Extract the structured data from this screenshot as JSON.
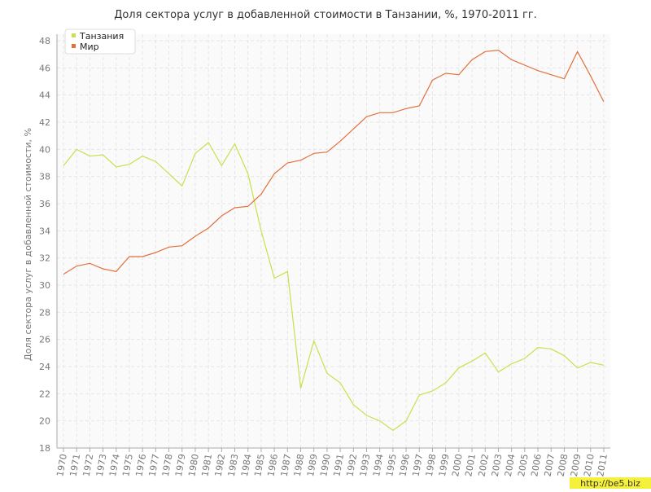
{
  "chart_data": {
    "type": "line",
    "title": "Доля сектора услуг в добавленной стоимости в Танзании, %, 1970-2011 гг.",
    "y_label": "Доля сектора услуг в добавленной стоимости, %",
    "watermark": "http://be5.biz",
    "x": [
      1970,
      1971,
      1972,
      1973,
      1974,
      1975,
      1976,
      1977,
      1978,
      1979,
      1980,
      1981,
      1982,
      1983,
      1984,
      1985,
      1986,
      1987,
      1988,
      1989,
      1990,
      1991,
      1992,
      1993,
      1994,
      1995,
      1996,
      1997,
      1998,
      1999,
      2000,
      2001,
      2002,
      2003,
      2004,
      2005,
      2006,
      2007,
      2008,
      2009,
      2010,
      2011
    ],
    "xlim": [
      1970,
      2011
    ],
    "ylim": [
      18,
      48
    ],
    "yticks": [
      18,
      20,
      22,
      24,
      26,
      28,
      30,
      32,
      34,
      36,
      38,
      40,
      42,
      44,
      46,
      48
    ],
    "grid": true,
    "legend": "top-left",
    "series": [
      {
        "name": "Танзания",
        "color": "#c8e04c",
        "values": [
          38.8,
          40.0,
          39.5,
          39.6,
          38.7,
          38.9,
          39.5,
          39.1,
          38.2,
          37.3,
          39.7,
          40.5,
          38.8,
          40.4,
          38.2,
          34.0,
          30.5,
          31.0,
          22.4,
          25.9,
          23.5,
          22.8,
          21.2,
          20.4,
          20.0,
          19.3,
          20.0,
          21.9,
          22.2,
          22.8,
          23.9,
          24.4,
          25.0,
          23.6,
          24.2,
          24.6,
          25.4,
          25.3,
          24.8,
          23.9,
          24.3,
          24.1
        ]
      },
      {
        "name": "Мир",
        "color": "#e2703c",
        "values": [
          30.8,
          31.4,
          31.6,
          31.2,
          31.0,
          32.1,
          32.1,
          32.4,
          32.8,
          32.9,
          33.6,
          34.2,
          35.1,
          35.7,
          35.8,
          36.7,
          38.2,
          39.0,
          39.2,
          39.7,
          39.8,
          40.6,
          41.5,
          42.4,
          42.7,
          42.7,
          43.0,
          43.2,
          45.1,
          45.6,
          45.5,
          46.6,
          47.2,
          47.3,
          46.6,
          46.2,
          45.8,
          45.5,
          45.2,
          47.2,
          45.4,
          43.5
        ]
      }
    ]
  }
}
